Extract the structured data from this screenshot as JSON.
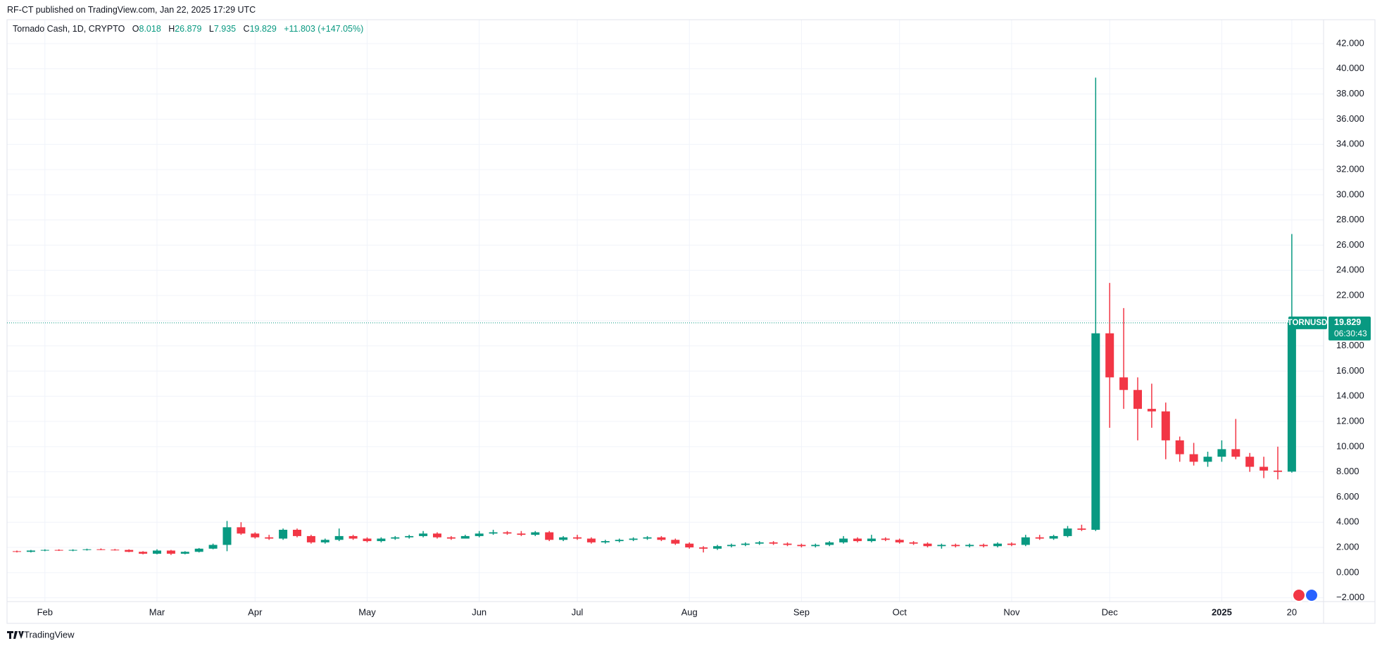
{
  "header": {
    "published": "RF-CT published on TradingView.com, Jan 22, 2025 17:29 UTC",
    "brand": "TradingView"
  },
  "chart_data": {
    "type": "candlestick",
    "title": "Tornado Cash, 1D, CRYPTO",
    "ohlc": {
      "labels": [
        "O",
        "H",
        "L",
        "C"
      ],
      "values": [
        8.018,
        26.879,
        7.935,
        19.829
      ],
      "change": "+11.803 (+147.05%)"
    },
    "up_color": "#089981",
    "down_color": "#f23645",
    "grid": true,
    "grid_color": "#f0f3fa",
    "last_price": {
      "symbol": "TORNUSD",
      "value": 19.829,
      "countdown": "06:30:43"
    },
    "ylim": [
      -2.3,
      43.9
    ],
    "yticks": [
      {
        "value": -2,
        "label": "−2.000"
      },
      {
        "value": 0,
        "label": "0.000"
      },
      {
        "value": 2,
        "label": "2.000"
      },
      {
        "value": 4,
        "label": "4.000"
      },
      {
        "value": 6,
        "label": "6.000"
      },
      {
        "value": 8,
        "label": "8.000"
      },
      {
        "value": 10,
        "label": "10.000"
      },
      {
        "value": 12,
        "label": "12.000"
      },
      {
        "value": 14,
        "label": "14.000"
      },
      {
        "value": 16,
        "label": "16.000"
      },
      {
        "value": 18,
        "label": "18.000"
      },
      {
        "value": 20,
        "label": "20.000"
      },
      {
        "value": 22,
        "label": "22.000"
      },
      {
        "value": 24,
        "label": "24.000"
      },
      {
        "value": 26,
        "label": "26.000"
      },
      {
        "value": 28,
        "label": "28.000"
      },
      {
        "value": 30,
        "label": "30.000"
      },
      {
        "value": 32,
        "label": "32.000"
      },
      {
        "value": 34,
        "label": "34.000"
      },
      {
        "value": 36,
        "label": "36.000"
      },
      {
        "value": 38,
        "label": "38.000"
      },
      {
        "value": 40,
        "label": "40.000"
      },
      {
        "value": 42,
        "label": "42.000"
      }
    ],
    "categories": [
      null,
      null,
      "Feb",
      null,
      null,
      null,
      null,
      null,
      null,
      null,
      "Mar",
      null,
      null,
      null,
      null,
      null,
      null,
      "Apr",
      null,
      null,
      null,
      null,
      null,
      null,
      null,
      "May",
      null,
      null,
      null,
      null,
      null,
      null,
      null,
      "Jun",
      null,
      null,
      null,
      null,
      null,
      null,
      "Jul",
      null,
      null,
      null,
      null,
      null,
      null,
      null,
      "Aug",
      null,
      null,
      null,
      null,
      null,
      null,
      null,
      "Sep",
      null,
      null,
      null,
      null,
      null,
      null,
      "Oct",
      null,
      null,
      null,
      null,
      null,
      null,
      null,
      "Nov",
      null,
      null,
      null,
      null,
      null,
      null,
      "Dec",
      null,
      null,
      null,
      null,
      null,
      null,
      null,
      "2025",
      null,
      null,
      null,
      null,
      "20"
    ],
    "candles": [
      [
        1.7,
        1.75,
        1.6,
        1.65
      ],
      [
        1.65,
        1.8,
        1.6,
        1.75
      ],
      [
        1.75,
        1.85,
        1.7,
        1.8
      ],
      [
        1.8,
        1.85,
        1.72,
        1.78
      ],
      [
        1.78,
        1.85,
        1.7,
        1.8
      ],
      [
        1.8,
        1.9,
        1.75,
        1.85
      ],
      [
        1.85,
        1.92,
        1.78,
        1.82
      ],
      [
        1.82,
        1.88,
        1.75,
        1.8
      ],
      [
        1.8,
        1.85,
        1.62,
        1.65
      ],
      [
        1.65,
        1.7,
        1.45,
        1.5
      ],
      [
        1.5,
        1.85,
        1.45,
        1.75
      ],
      [
        1.75,
        1.8,
        1.4,
        1.5
      ],
      [
        1.5,
        1.7,
        1.45,
        1.65
      ],
      [
        1.65,
        1.95,
        1.6,
        1.9
      ],
      [
        1.9,
        2.3,
        1.85,
        2.2
      ],
      [
        2.2,
        4.1,
        1.7,
        3.6
      ],
      [
        3.6,
        4.0,
        3.0,
        3.1
      ],
      [
        3.1,
        3.2,
        2.7,
        2.8
      ],
      [
        2.8,
        3.0,
        2.6,
        2.7
      ],
      [
        2.7,
        3.5,
        2.6,
        3.4
      ],
      [
        3.4,
        3.5,
        2.8,
        2.9
      ],
      [
        2.9,
        3.0,
        2.3,
        2.4
      ],
      [
        2.4,
        2.7,
        2.3,
        2.6
      ],
      [
        2.6,
        3.5,
        2.5,
        2.9
      ],
      [
        2.9,
        3.0,
        2.6,
        2.7
      ],
      [
        2.7,
        2.8,
        2.4,
        2.5
      ],
      [
        2.5,
        2.8,
        2.4,
        2.7
      ],
      [
        2.7,
        2.9,
        2.6,
        2.8
      ],
      [
        2.8,
        3.0,
        2.7,
        2.9
      ],
      [
        2.9,
        3.3,
        2.8,
        3.1
      ],
      [
        3.1,
        3.2,
        2.7,
        2.8
      ],
      [
        2.8,
        2.9,
        2.6,
        2.7
      ],
      [
        2.7,
        3.0,
        2.7,
        2.9
      ],
      [
        2.9,
        3.3,
        2.8,
        3.1
      ],
      [
        3.1,
        3.4,
        3.0,
        3.2
      ],
      [
        3.2,
        3.3,
        3.0,
        3.1
      ],
      [
        3.1,
        3.3,
        2.9,
        3.0
      ],
      [
        3.0,
        3.3,
        2.9,
        3.2
      ],
      [
        3.2,
        3.3,
        2.5,
        2.6
      ],
      [
        2.6,
        2.9,
        2.5,
        2.8
      ],
      [
        2.8,
        3.0,
        2.6,
        2.7
      ],
      [
        2.7,
        2.8,
        2.3,
        2.4
      ],
      [
        2.4,
        2.6,
        2.3,
        2.5
      ],
      [
        2.5,
        2.7,
        2.4,
        2.6
      ],
      [
        2.6,
        2.8,
        2.5,
        2.7
      ],
      [
        2.7,
        2.9,
        2.6,
        2.8
      ],
      [
        2.8,
        2.9,
        2.5,
        2.6
      ],
      [
        2.6,
        2.7,
        2.2,
        2.3
      ],
      [
        2.3,
        2.4,
        1.9,
        2.0
      ],
      [
        2.0,
        2.1,
        1.6,
        1.9
      ],
      [
        1.9,
        2.2,
        1.8,
        2.1
      ],
      [
        2.1,
        2.3,
        2.0,
        2.2
      ],
      [
        2.2,
        2.4,
        2.1,
        2.3
      ],
      [
        2.3,
        2.5,
        2.2,
        2.4
      ],
      [
        2.4,
        2.5,
        2.2,
        2.3
      ],
      [
        2.3,
        2.4,
        2.1,
        2.2
      ],
      [
        2.2,
        2.3,
        2.0,
        2.1
      ],
      [
        2.1,
        2.3,
        2.0,
        2.2
      ],
      [
        2.2,
        2.5,
        2.1,
        2.4
      ],
      [
        2.4,
        2.9,
        2.3,
        2.7
      ],
      [
        2.7,
        2.8,
        2.4,
        2.5
      ],
      [
        2.5,
        3.0,
        2.4,
        2.7
      ],
      [
        2.7,
        2.8,
        2.5,
        2.6
      ],
      [
        2.6,
        2.7,
        2.3,
        2.4
      ],
      [
        2.4,
        2.5,
        2.2,
        2.3
      ],
      [
        2.3,
        2.4,
        2.0,
        2.1
      ],
      [
        2.1,
        2.3,
        1.9,
        2.2
      ],
      [
        2.2,
        2.3,
        2.0,
        2.1
      ],
      [
        2.1,
        2.3,
        2.0,
        2.2
      ],
      [
        2.2,
        2.3,
        2.0,
        2.1
      ],
      [
        2.1,
        2.4,
        2.0,
        2.3
      ],
      [
        2.3,
        2.4,
        2.1,
        2.2
      ],
      [
        2.2,
        3.0,
        2.1,
        2.8
      ],
      [
        2.8,
        3.0,
        2.6,
        2.7
      ],
      [
        2.7,
        3.0,
        2.6,
        2.9
      ],
      [
        2.9,
        3.7,
        2.8,
        3.5
      ],
      [
        3.5,
        3.8,
        3.3,
        3.4
      ],
      [
        3.4,
        39.3,
        3.3,
        19.0
      ],
      [
        19.0,
        23.0,
        11.5,
        15.5
      ],
      [
        15.5,
        21.0,
        13.0,
        14.5
      ],
      [
        14.5,
        15.5,
        10.5,
        13.0
      ],
      [
        13.0,
        15.0,
        11.5,
        12.8
      ],
      [
        12.8,
        13.5,
        9.0,
        10.5
      ],
      [
        10.5,
        10.8,
        8.8,
        9.4
      ],
      [
        9.4,
        10.3,
        8.5,
        8.8
      ],
      [
        8.8,
        9.6,
        8.4,
        9.2
      ],
      [
        9.2,
        10.5,
        8.8,
        9.8
      ],
      [
        9.8,
        12.2,
        9.0,
        9.2
      ],
      [
        9.2,
        9.5,
        8.0,
        8.4
      ],
      [
        8.4,
        9.2,
        7.5,
        8.1
      ],
      [
        8.1,
        10.0,
        7.4,
        8.0
      ],
      [
        8.018,
        26.879,
        7.935,
        19.829
      ]
    ]
  }
}
